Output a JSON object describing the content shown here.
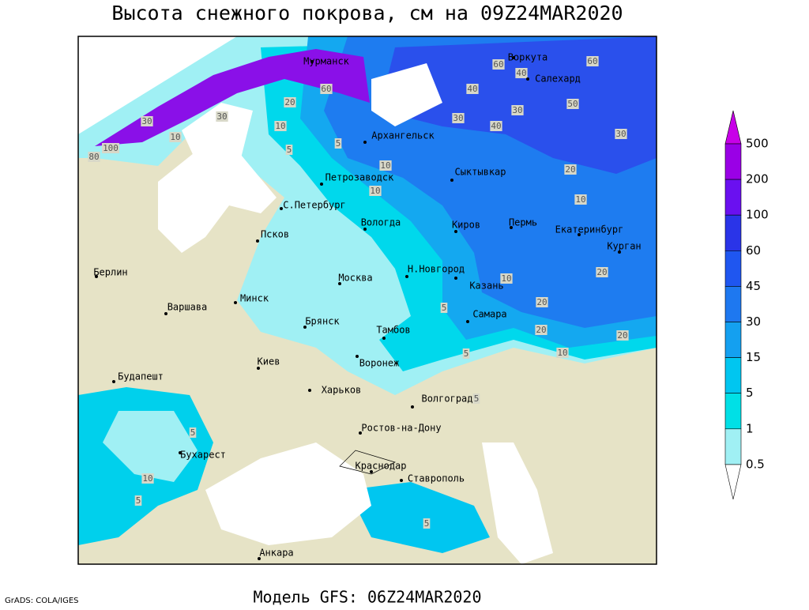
{
  "title": "Высота снежного покрова, см на 09Z24MAR2020",
  "model": "Модель GFS: 06Z24MAR2020",
  "credit": "GrADS: COLA/IGES",
  "legend": {
    "levels": [
      500,
      200,
      100,
      60,
      45,
      30,
      15,
      5,
      1,
      0.5
    ],
    "colors": [
      "#c800e8",
      "#9a00e6",
      "#6a10f0",
      "#2a34e8",
      "#1f56f0",
      "#1e78f0",
      "#14a0f0",
      "#00c6f0",
      "#00e0e6",
      "#a0f0f4",
      "#ffffff"
    ]
  },
  "cities": [
    "Мурманск",
    "Воркута",
    "Салехард",
    "Архангельск",
    "Петрозаводск",
    "Сыктывкар",
    "С.Петербург",
    "Вологда",
    "Киров",
    "Пермь",
    "Екатеринбург",
    "Курган",
    "Псков",
    "Н.Новгород",
    "Москва",
    "Казань",
    "Берлин",
    "Минск",
    "Варшава",
    "Самара",
    "Брянск",
    "Тамбов",
    "Воронеж",
    "Киев",
    "Харьков",
    "Будапешт",
    "Волгоград",
    "Ростов-на-Дону",
    "Бухарест",
    "Краснодар",
    "Ставрополь",
    "Анкара"
  ],
  "contour_labels": [
    100,
    80,
    60,
    60,
    60,
    40,
    50,
    40,
    30,
    40,
    30,
    20,
    10,
    10,
    20,
    10,
    30,
    20,
    20,
    10,
    20,
    10,
    5,
    5,
    10,
    30,
    10,
    5,
    5,
    5,
    10,
    5,
    5,
    5,
    20,
    30
  ]
}
